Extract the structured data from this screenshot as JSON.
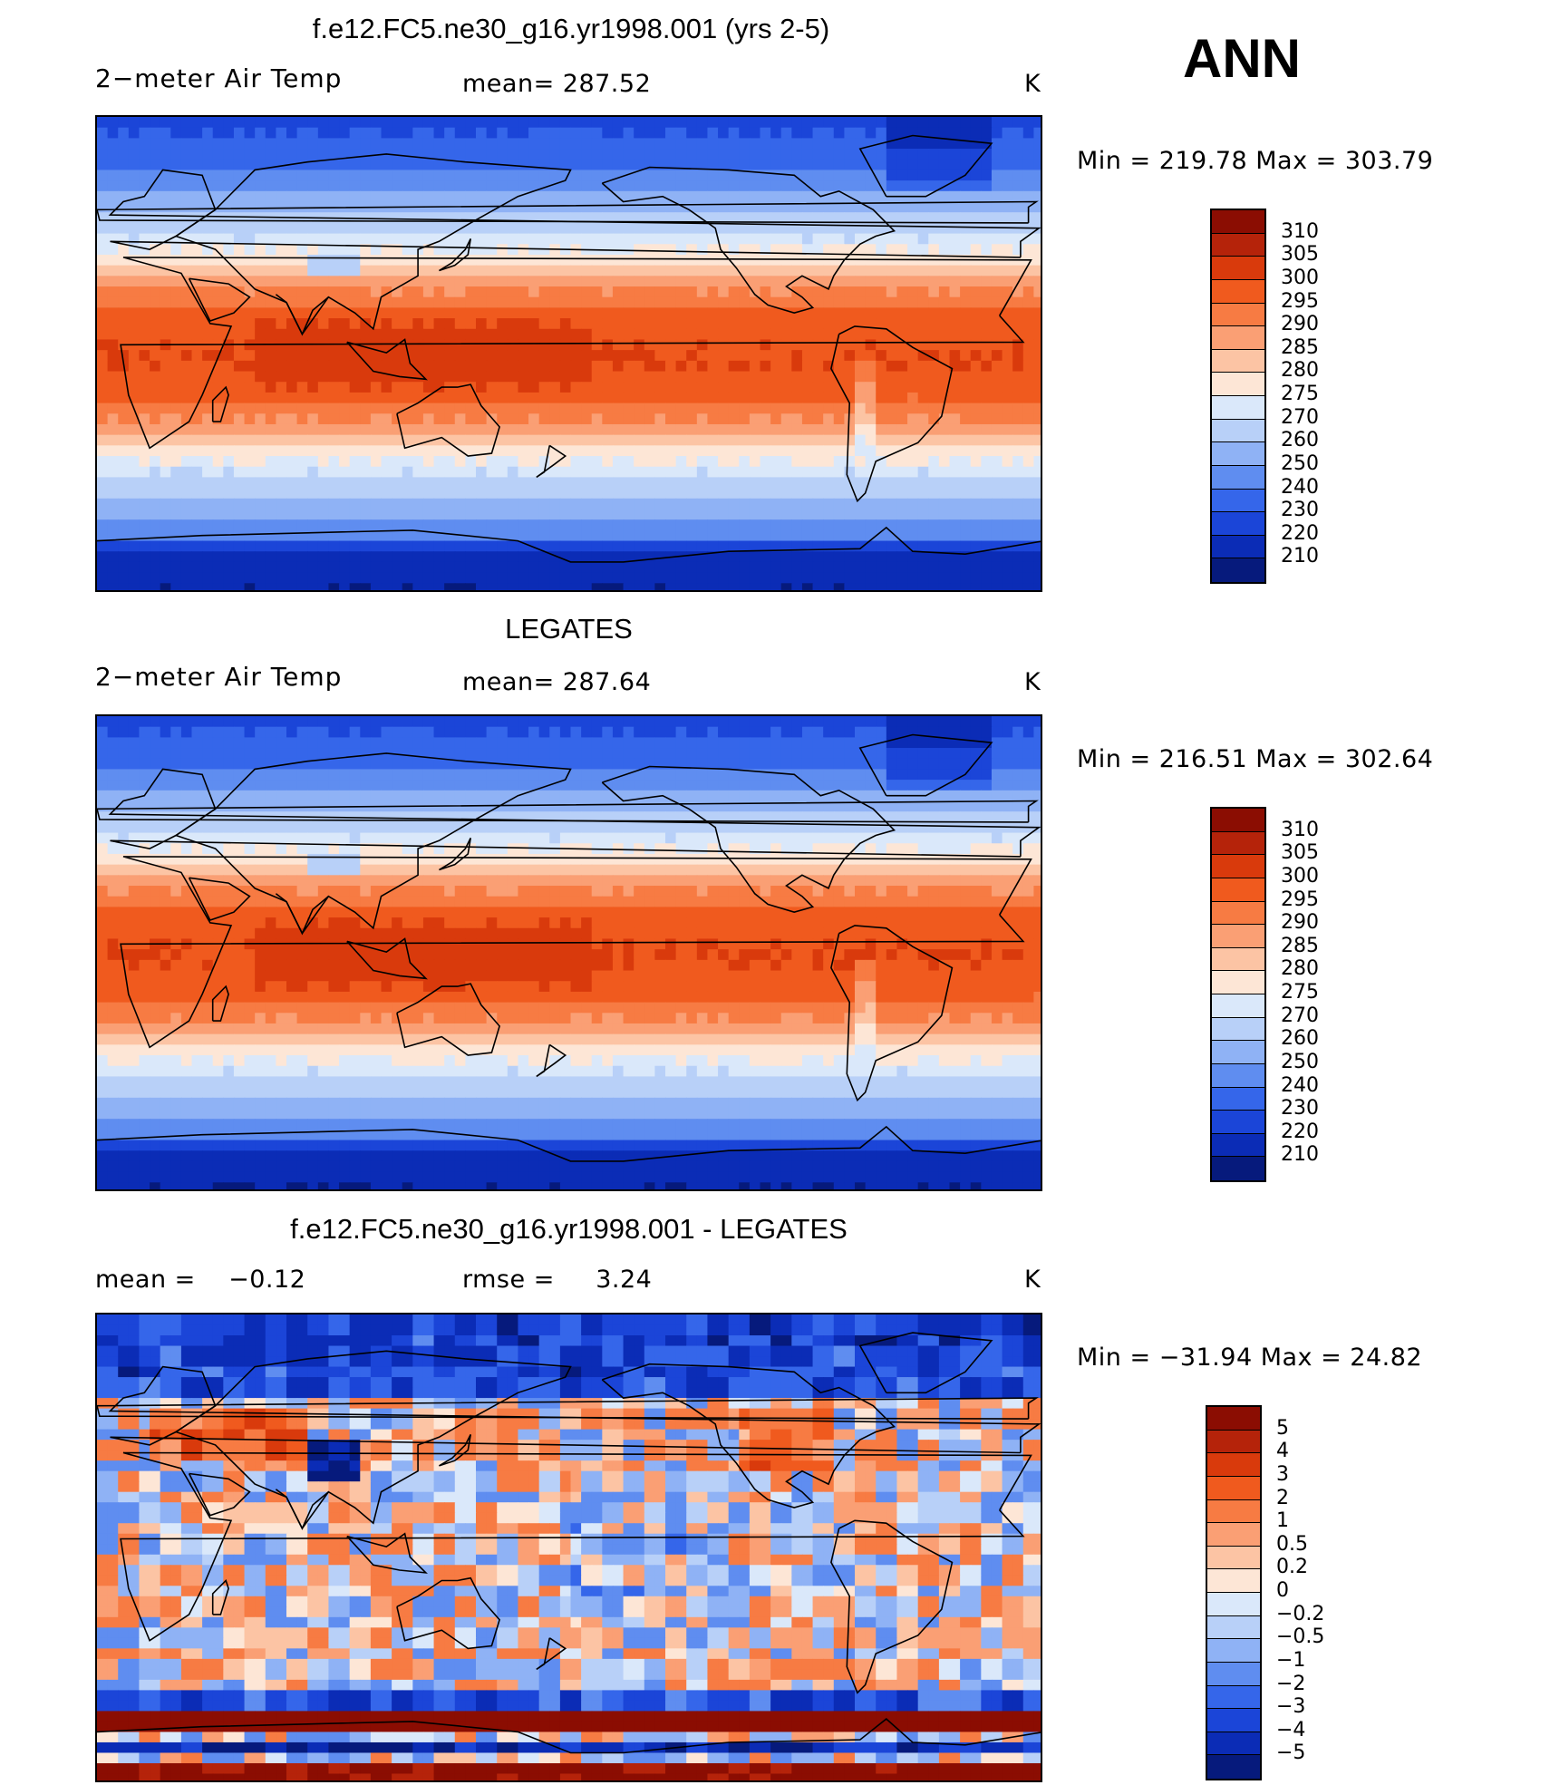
{
  "season": "ANN",
  "panels": [
    {
      "title": "f.e12.FC5.ne30_g16.yr1998.001 (yrs 2-5)",
      "left_label": "2−meter Air Temp",
      "center_label": "mean= 287.52",
      "units": "K",
      "minmax": "Min = 219.78 Max = 303.79",
      "field": "model"
    },
    {
      "title": "LEGATES",
      "left_label": "2−meter Air Temp",
      "center_label": "mean= 287.64",
      "units": "K",
      "minmax": "Min = 216.51 Max = 302.64",
      "field": "obs"
    },
    {
      "title": "f.e12.FC5.ne30_g16.yr1998.001 - LEGATES",
      "left_label": "mean =    −0.12",
      "center_label": "rmse =     3.24",
      "units": "K",
      "minmax": "Min = −31.94 Max =   24.82",
      "field": "diff"
    }
  ],
  "colorbars": {
    "temperature": {
      "labels": [
        "310",
        "305",
        "300",
        "295",
        "290",
        "285",
        "280",
        "275",
        "270",
        "260",
        "250",
        "240",
        "230",
        "220",
        "210"
      ],
      "colors": [
        "#8b0d02",
        "#b5230a",
        "#d93a0c",
        "#f05a1e",
        "#f77b43",
        "#fa9f74",
        "#fcc4a4",
        "#fde6d6",
        "#dae8fa",
        "#b8d0f8",
        "#8fb2f5",
        "#5f8df0",
        "#3566ea",
        "#1b45d8",
        "#0b2cb6",
        "#061a7c"
      ]
    },
    "difference": {
      "labels": [
        "5",
        "4",
        "3",
        "2",
        "1",
        "0.5",
        "0.2",
        "0",
        "−0.2",
        "−0.5",
        "−1",
        "−2",
        "−3",
        "−4",
        "−5"
      ],
      "colors": [
        "#8b0d02",
        "#b5230a",
        "#d93a0c",
        "#f05a1e",
        "#f77b43",
        "#fa9f74",
        "#fcc4a4",
        "#fde6d6",
        "#dae8fa",
        "#b8d0f8",
        "#8fb2f5",
        "#5f8df0",
        "#3566ea",
        "#1b45d8",
        "#0b2cb6",
        "#061a7c"
      ]
    }
  }
}
